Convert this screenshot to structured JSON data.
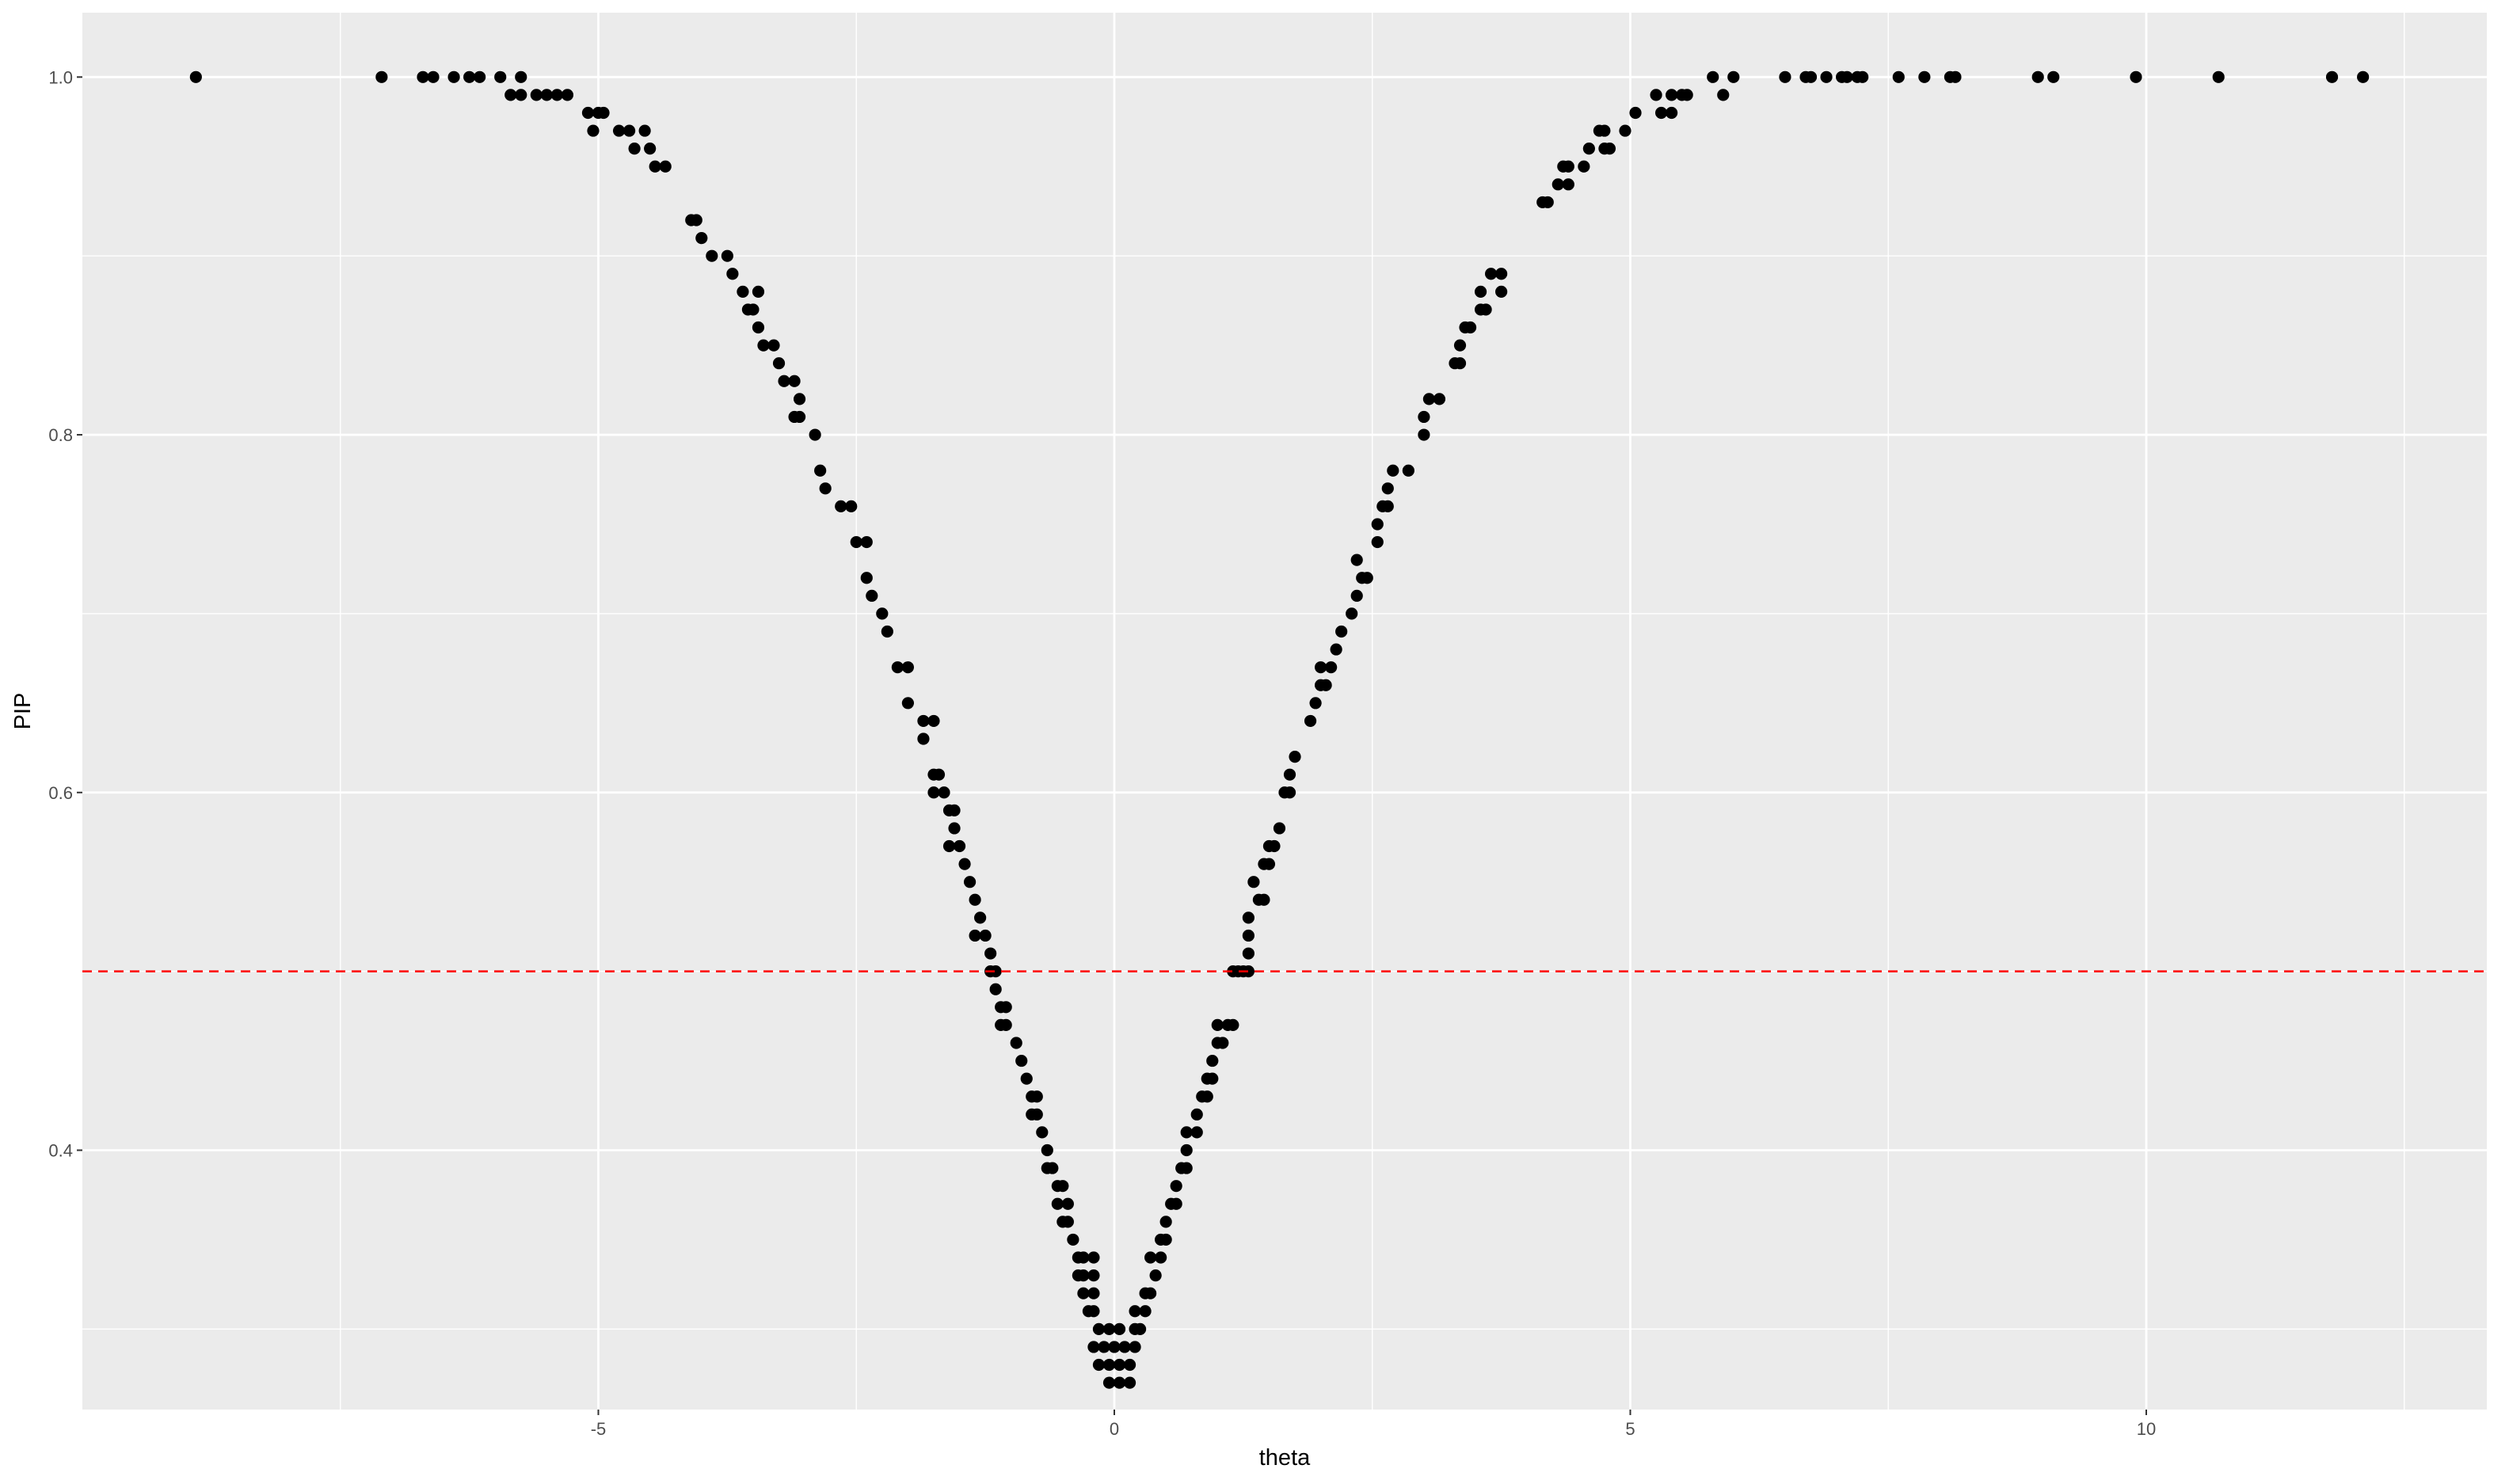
{
  "chart_data": {
    "type": "scatter",
    "title": "",
    "xlabel": "theta",
    "ylabel": "PIP",
    "xlim": [
      -10,
      13.3
    ],
    "ylim": [
      0.255,
      1.036
    ],
    "x_ticks": [
      -5,
      0,
      5,
      10
    ],
    "x_tick_labels": [
      "-5",
      "0",
      "5",
      "10"
    ],
    "y_ticks": [
      0.4,
      0.6,
      0.8,
      1.0
    ],
    "y_tick_labels": [
      "0.4",
      "0.6",
      "0.8",
      "1.0"
    ],
    "grid": true,
    "legend": "none",
    "hline": {
      "y": 0.5,
      "color": "#ff0000",
      "style": "dashed"
    },
    "colors": {
      "panel": "#ebebeb",
      "grid_major": "#ffffff",
      "point": "#000000"
    },
    "points": [
      {
        "x": -8.9,
        "y": 1.0
      },
      {
        "x": -7.1,
        "y": 1.0
      },
      {
        "x": -6.7,
        "y": 1.0
      },
      {
        "x": -6.6,
        "y": 1.0
      },
      {
        "x": -6.4,
        "y": 1.0
      },
      {
        "x": -6.25,
        "y": 1.0
      },
      {
        "x": -6.15,
        "y": 1.0
      },
      {
        "x": -5.95,
        "y": 1.0
      },
      {
        "x": -5.75,
        "y": 1.0
      },
      {
        "x": -5.85,
        "y": 0.99
      },
      {
        "x": -5.75,
        "y": 0.99
      },
      {
        "x": -5.6,
        "y": 0.99
      },
      {
        "x": -5.5,
        "y": 0.99
      },
      {
        "x": -5.4,
        "y": 0.99
      },
      {
        "x": -5.3,
        "y": 0.99
      },
      {
        "x": -5.1,
        "y": 0.98
      },
      {
        "x": -5.0,
        "y": 0.98
      },
      {
        "x": -4.95,
        "y": 0.98
      },
      {
        "x": -5.05,
        "y": 0.97
      },
      {
        "x": -4.8,
        "y": 0.97
      },
      {
        "x": -4.7,
        "y": 0.97
      },
      {
        "x": -4.55,
        "y": 0.97
      },
      {
        "x": -4.65,
        "y": 0.96
      },
      {
        "x": -4.5,
        "y": 0.96
      },
      {
        "x": -4.45,
        "y": 0.95
      },
      {
        "x": -4.35,
        "y": 0.95
      },
      {
        "x": -4.1,
        "y": 0.92
      },
      {
        "x": -4.05,
        "y": 0.92
      },
      {
        "x": -4.0,
        "y": 0.91
      },
      {
        "x": -3.9,
        "y": 0.9
      },
      {
        "x": -3.75,
        "y": 0.9
      },
      {
        "x": -3.7,
        "y": 0.89
      },
      {
        "x": -3.6,
        "y": 0.88
      },
      {
        "x": -3.45,
        "y": 0.88
      },
      {
        "x": -3.55,
        "y": 0.87
      },
      {
        "x": -3.5,
        "y": 0.87
      },
      {
        "x": -3.45,
        "y": 0.86
      },
      {
        "x": -3.4,
        "y": 0.85
      },
      {
        "x": -3.3,
        "y": 0.85
      },
      {
        "x": -3.25,
        "y": 0.84
      },
      {
        "x": -3.2,
        "y": 0.83
      },
      {
        "x": -3.1,
        "y": 0.83
      },
      {
        "x": -3.05,
        "y": 0.82
      },
      {
        "x": -3.1,
        "y": 0.81
      },
      {
        "x": -3.05,
        "y": 0.81
      },
      {
        "x": -2.9,
        "y": 0.8
      },
      {
        "x": -2.85,
        "y": 0.78
      },
      {
        "x": -2.8,
        "y": 0.77
      },
      {
        "x": -2.65,
        "y": 0.76
      },
      {
        "x": -2.55,
        "y": 0.76
      },
      {
        "x": -2.5,
        "y": 0.74
      },
      {
        "x": -2.4,
        "y": 0.74
      },
      {
        "x": -2.4,
        "y": 0.72
      },
      {
        "x": -2.35,
        "y": 0.71
      },
      {
        "x": -2.25,
        "y": 0.7
      },
      {
        "x": -2.2,
        "y": 0.69
      },
      {
        "x": -2.1,
        "y": 0.67
      },
      {
        "x": -2.0,
        "y": 0.67
      },
      {
        "x": -2.0,
        "y": 0.65
      },
      {
        "x": -1.85,
        "y": 0.64
      },
      {
        "x": -1.75,
        "y": 0.64
      },
      {
        "x": -1.85,
        "y": 0.63
      },
      {
        "x": -1.75,
        "y": 0.61
      },
      {
        "x": -1.7,
        "y": 0.61
      },
      {
        "x": -1.75,
        "y": 0.6
      },
      {
        "x": -1.65,
        "y": 0.6
      },
      {
        "x": -1.6,
        "y": 0.59
      },
      {
        "x": -1.55,
        "y": 0.59
      },
      {
        "x": -1.55,
        "y": 0.58
      },
      {
        "x": -1.6,
        "y": 0.57
      },
      {
        "x": -1.5,
        "y": 0.57
      },
      {
        "x": -1.45,
        "y": 0.56
      },
      {
        "x": -1.4,
        "y": 0.55
      },
      {
        "x": -1.35,
        "y": 0.54
      },
      {
        "x": -1.3,
        "y": 0.53
      },
      {
        "x": -1.35,
        "y": 0.52
      },
      {
        "x": -1.25,
        "y": 0.52
      },
      {
        "x": -1.2,
        "y": 0.51
      },
      {
        "x": -1.2,
        "y": 0.5
      },
      {
        "x": -1.15,
        "y": 0.5
      },
      {
        "x": -1.15,
        "y": 0.49
      },
      {
        "x": -1.1,
        "y": 0.48
      },
      {
        "x": -1.05,
        "y": 0.48
      },
      {
        "x": -1.1,
        "y": 0.47
      },
      {
        "x": -1.05,
        "y": 0.47
      },
      {
        "x": -0.95,
        "y": 0.46
      },
      {
        "x": -0.9,
        "y": 0.45
      },
      {
        "x": -0.85,
        "y": 0.44
      },
      {
        "x": -0.8,
        "y": 0.43
      },
      {
        "x": -0.75,
        "y": 0.43
      },
      {
        "x": -0.8,
        "y": 0.42
      },
      {
        "x": -0.75,
        "y": 0.42
      },
      {
        "x": -0.7,
        "y": 0.41
      },
      {
        "x": -0.65,
        "y": 0.4
      },
      {
        "x": -0.65,
        "y": 0.39
      },
      {
        "x": -0.6,
        "y": 0.39
      },
      {
        "x": -0.55,
        "y": 0.38
      },
      {
        "x": -0.5,
        "y": 0.38
      },
      {
        "x": -0.55,
        "y": 0.37
      },
      {
        "x": -0.45,
        "y": 0.37
      },
      {
        "x": -0.5,
        "y": 0.36
      },
      {
        "x": -0.45,
        "y": 0.36
      },
      {
        "x": -0.4,
        "y": 0.35
      },
      {
        "x": -0.35,
        "y": 0.34
      },
      {
        "x": -0.3,
        "y": 0.34
      },
      {
        "x": -0.2,
        "y": 0.34
      },
      {
        "x": -0.35,
        "y": 0.33
      },
      {
        "x": -0.3,
        "y": 0.33
      },
      {
        "x": -0.2,
        "y": 0.33
      },
      {
        "x": -0.3,
        "y": 0.32
      },
      {
        "x": -0.2,
        "y": 0.32
      },
      {
        "x": -0.25,
        "y": 0.31
      },
      {
        "x": -0.2,
        "y": 0.31
      },
      {
        "x": -0.15,
        "y": 0.3
      },
      {
        "x": -0.05,
        "y": 0.3
      },
      {
        "x": 0.05,
        "y": 0.3
      },
      {
        "x": -0.2,
        "y": 0.29
      },
      {
        "x": -0.1,
        "y": 0.29
      },
      {
        "x": 0.0,
        "y": 0.29
      },
      {
        "x": 0.1,
        "y": 0.29
      },
      {
        "x": 0.2,
        "y": 0.29
      },
      {
        "x": -0.15,
        "y": 0.28
      },
      {
        "x": -0.05,
        "y": 0.28
      },
      {
        "x": 0.05,
        "y": 0.28
      },
      {
        "x": 0.15,
        "y": 0.28
      },
      {
        "x": -0.05,
        "y": 0.27
      },
      {
        "x": 0.05,
        "y": 0.27
      },
      {
        "x": 0.15,
        "y": 0.27
      },
      {
        "x": 0.2,
        "y": 0.3
      },
      {
        "x": 0.25,
        "y": 0.3
      },
      {
        "x": 0.2,
        "y": 0.31
      },
      {
        "x": 0.3,
        "y": 0.31
      },
      {
        "x": 0.3,
        "y": 0.32
      },
      {
        "x": 0.35,
        "y": 0.32
      },
      {
        "x": 0.4,
        "y": 0.33
      },
      {
        "x": 0.35,
        "y": 0.34
      },
      {
        "x": 0.45,
        "y": 0.34
      },
      {
        "x": 0.45,
        "y": 0.35
      },
      {
        "x": 0.5,
        "y": 0.35
      },
      {
        "x": 0.5,
        "y": 0.36
      },
      {
        "x": 0.55,
        "y": 0.37
      },
      {
        "x": 0.6,
        "y": 0.37
      },
      {
        "x": 0.6,
        "y": 0.38
      },
      {
        "x": 0.65,
        "y": 0.39
      },
      {
        "x": 0.7,
        "y": 0.39
      },
      {
        "x": 0.7,
        "y": 0.4
      },
      {
        "x": 0.7,
        "y": 0.41
      },
      {
        "x": 0.8,
        "y": 0.41
      },
      {
        "x": 0.8,
        "y": 0.42
      },
      {
        "x": 0.85,
        "y": 0.43
      },
      {
        "x": 0.9,
        "y": 0.43
      },
      {
        "x": 0.95,
        "y": 0.44
      },
      {
        "x": 0.9,
        "y": 0.44
      },
      {
        "x": 0.95,
        "y": 0.45
      },
      {
        "x": 1.0,
        "y": 0.46
      },
      {
        "x": 1.05,
        "y": 0.46
      },
      {
        "x": 1.0,
        "y": 0.47
      },
      {
        "x": 1.1,
        "y": 0.47
      },
      {
        "x": 1.15,
        "y": 0.47
      },
      {
        "x": 1.15,
        "y": 0.5
      },
      {
        "x": 1.2,
        "y": 0.5
      },
      {
        "x": 1.25,
        "y": 0.5
      },
      {
        "x": 1.3,
        "y": 0.5
      },
      {
        "x": 1.3,
        "y": 0.51
      },
      {
        "x": 1.3,
        "y": 0.52
      },
      {
        "x": 1.3,
        "y": 0.53
      },
      {
        "x": 1.35,
        "y": 0.55
      },
      {
        "x": 1.4,
        "y": 0.54
      },
      {
        "x": 1.45,
        "y": 0.54
      },
      {
        "x": 1.45,
        "y": 0.56
      },
      {
        "x": 1.5,
        "y": 0.56
      },
      {
        "x": 1.5,
        "y": 0.57
      },
      {
        "x": 1.55,
        "y": 0.57
      },
      {
        "x": 1.6,
        "y": 0.58
      },
      {
        "x": 1.65,
        "y": 0.6
      },
      {
        "x": 1.7,
        "y": 0.6
      },
      {
        "x": 1.7,
        "y": 0.61
      },
      {
        "x": 1.75,
        "y": 0.62
      },
      {
        "x": 1.9,
        "y": 0.64
      },
      {
        "x": 1.95,
        "y": 0.65
      },
      {
        "x": 2.0,
        "y": 0.66
      },
      {
        "x": 2.0,
        "y": 0.67
      },
      {
        "x": 2.05,
        "y": 0.66
      },
      {
        "x": 2.1,
        "y": 0.67
      },
      {
        "x": 2.15,
        "y": 0.68
      },
      {
        "x": 2.2,
        "y": 0.69
      },
      {
        "x": 2.3,
        "y": 0.7
      },
      {
        "x": 2.35,
        "y": 0.71
      },
      {
        "x": 2.4,
        "y": 0.72
      },
      {
        "x": 2.45,
        "y": 0.72
      },
      {
        "x": 2.35,
        "y": 0.73
      },
      {
        "x": 2.55,
        "y": 0.74
      },
      {
        "x": 2.55,
        "y": 0.75
      },
      {
        "x": 2.6,
        "y": 0.76
      },
      {
        "x": 2.65,
        "y": 0.76
      },
      {
        "x": 2.65,
        "y": 0.77
      },
      {
        "x": 2.7,
        "y": 0.78
      },
      {
        "x": 2.85,
        "y": 0.78
      },
      {
        "x": 3.0,
        "y": 0.81
      },
      {
        "x": 3.0,
        "y": 0.8
      },
      {
        "x": 3.05,
        "y": 0.82
      },
      {
        "x": 3.15,
        "y": 0.82
      },
      {
        "x": 3.3,
        "y": 0.84
      },
      {
        "x": 3.35,
        "y": 0.84
      },
      {
        "x": 3.35,
        "y": 0.85
      },
      {
        "x": 3.4,
        "y": 0.86
      },
      {
        "x": 3.45,
        "y": 0.86
      },
      {
        "x": 3.55,
        "y": 0.87
      },
      {
        "x": 3.6,
        "y": 0.87
      },
      {
        "x": 3.55,
        "y": 0.88
      },
      {
        "x": 3.75,
        "y": 0.88
      },
      {
        "x": 3.65,
        "y": 0.89
      },
      {
        "x": 3.75,
        "y": 0.89
      },
      {
        "x": 4.15,
        "y": 0.93
      },
      {
        "x": 4.2,
        "y": 0.93
      },
      {
        "x": 4.3,
        "y": 0.94
      },
      {
        "x": 4.4,
        "y": 0.94
      },
      {
        "x": 4.35,
        "y": 0.95
      },
      {
        "x": 4.4,
        "y": 0.95
      },
      {
        "x": 4.55,
        "y": 0.95
      },
      {
        "x": 4.6,
        "y": 0.96
      },
      {
        "x": 4.75,
        "y": 0.96
      },
      {
        "x": 4.8,
        "y": 0.96
      },
      {
        "x": 4.7,
        "y": 0.97
      },
      {
        "x": 4.75,
        "y": 0.97
      },
      {
        "x": 4.95,
        "y": 0.97
      },
      {
        "x": 5.05,
        "y": 0.98
      },
      {
        "x": 5.3,
        "y": 0.98
      },
      {
        "x": 5.4,
        "y": 0.98
      },
      {
        "x": 5.25,
        "y": 0.99
      },
      {
        "x": 5.4,
        "y": 0.99
      },
      {
        "x": 5.5,
        "y": 0.99
      },
      {
        "x": 5.55,
        "y": 0.99
      },
      {
        "x": 5.9,
        "y": 0.99
      },
      {
        "x": 5.8,
        "y": 1.0
      },
      {
        "x": 6.0,
        "y": 1.0
      },
      {
        "x": 6.5,
        "y": 1.0
      },
      {
        "x": 6.7,
        "y": 1.0
      },
      {
        "x": 6.75,
        "y": 1.0
      },
      {
        "x": 6.9,
        "y": 1.0
      },
      {
        "x": 7.05,
        "y": 1.0
      },
      {
        "x": 7.1,
        "y": 1.0
      },
      {
        "x": 7.2,
        "y": 1.0
      },
      {
        "x": 7.25,
        "y": 1.0
      },
      {
        "x": 7.6,
        "y": 1.0
      },
      {
        "x": 7.85,
        "y": 1.0
      },
      {
        "x": 8.1,
        "y": 1.0
      },
      {
        "x": 8.15,
        "y": 1.0
      },
      {
        "x": 8.95,
        "y": 1.0
      },
      {
        "x": 9.1,
        "y": 1.0
      },
      {
        "x": 9.9,
        "y": 1.0
      },
      {
        "x": 10.7,
        "y": 1.0
      },
      {
        "x": 11.8,
        "y": 1.0
      },
      {
        "x": 12.1,
        "y": 1.0
      }
    ]
  }
}
